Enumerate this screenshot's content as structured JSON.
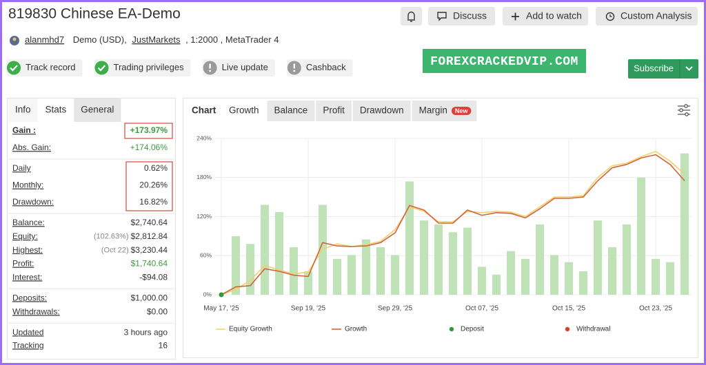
{
  "header": {
    "title": "819830 Chinese EA-Demo",
    "buttons": [
      "Discuss",
      "Add to watch",
      "Custom Analysis"
    ]
  },
  "account": {
    "user": "alanmhd7",
    "type": "Demo (USD),",
    "broker": "JustMarkets",
    "details": ", 1:2000 , MetaTrader 4"
  },
  "badges": [
    {
      "label": "Track record",
      "status": "ok"
    },
    {
      "label": "Trading privileges",
      "status": "ok"
    },
    {
      "label": "Live update",
      "status": "warn"
    },
    {
      "label": "Cashback",
      "status": "warn"
    }
  ],
  "watermark": "FOREXCRACKEDVIP.COM",
  "subscribe": "Subscribe",
  "stats_tabs": {
    "items": [
      "Info",
      "Stats",
      "General"
    ],
    "active": 1
  },
  "stats": [
    {
      "rows": [
        {
          "label": "Gain :",
          "value": "+173.97%",
          "color": "#3c9a3c",
          "bold": true,
          "boxed": true
        },
        {
          "label": "Abs. Gain:",
          "value": "+174.06%",
          "color": "#3c9a3c"
        }
      ]
    },
    {
      "boxed": true,
      "rows": [
        {
          "label": "Daily",
          "value": "0.62%"
        },
        {
          "label": "Monthly:",
          "value": "20.26%"
        },
        {
          "label": "Drawdown:",
          "value": "16.82%"
        }
      ]
    },
    {
      "rows": [
        {
          "label": "Balance:",
          "value": "$2,740.64"
        },
        {
          "label": "Equity:",
          "value": "$2,812.84",
          "note": "(102.63%)"
        },
        {
          "label": "Highest:",
          "value": "$3,230.44",
          "note": "(Oct 22)"
        },
        {
          "label": "Profit:",
          "value": "$1,740.64",
          "color": "#3c9a3c"
        },
        {
          "label": "Interest:",
          "value": "-$94.08"
        }
      ]
    },
    {
      "rows": [
        {
          "label": "Deposits:",
          "value": "$1,000.00"
        },
        {
          "label": "Withdrawals:",
          "value": "$0.00"
        }
      ]
    },
    {
      "rows": [
        {
          "label": "Updated",
          "value": "3 hours ago"
        },
        {
          "label": "Tracking",
          "value": "16"
        }
      ]
    }
  ],
  "chart_tabs": {
    "label": "Chart",
    "items": [
      "Growth",
      "Balance",
      "Profit",
      "Drawdown",
      "Margin"
    ],
    "active": 0,
    "new_badge": "New"
  },
  "chart_data": {
    "type": "line",
    "x": [
      0,
      1,
      2,
      3,
      4,
      5,
      6,
      7,
      8,
      9,
      10,
      11,
      12,
      13,
      14,
      15,
      16,
      17,
      18,
      19,
      20,
      21,
      22,
      23,
      24,
      25,
      26,
      27,
      28,
      29,
      30,
      31,
      32
    ],
    "xlim": [
      -1,
      32.5
    ],
    "xticks": [
      {
        "value": 0,
        "label": "May 17, '25"
      },
      {
        "value": 6,
        "label": "Sep 19, '25"
      },
      {
        "value": 12,
        "label": "Sep 29, '25"
      },
      {
        "value": 18,
        "label": "Oct 07, '25"
      },
      {
        "value": 24,
        "label": "Oct 15, '25"
      },
      {
        "value": 30,
        "label": "Oct 23, '25"
      }
    ],
    "ylim": [
      0,
      240
    ],
    "yticks": [
      {
        "value": 0,
        "label": "0%"
      },
      {
        "value": 60,
        "label": "60%"
      },
      {
        "value": 120,
        "label": "120%"
      },
      {
        "value": 180,
        "label": "180%"
      },
      {
        "value": 240,
        "label": "240%"
      }
    ],
    "grid": true,
    "bars": {
      "color": "#bfe3b6",
      "values": [
        null,
        90,
        78,
        138,
        127,
        73,
        36,
        138,
        55,
        61,
        85,
        73,
        61,
        174,
        114,
        108,
        96,
        103,
        43,
        31,
        67,
        55,
        108,
        61,
        50,
        36,
        114,
        73,
        108,
        180,
        55,
        50,
        217
      ]
    },
    "series": [
      {
        "name": "Equity Growth",
        "color": "#f0d070",
        "values": [
          0,
          8,
          22,
          45,
          38,
          32,
          35,
          70,
          78,
          74,
          77,
          82,
          100,
          135,
          128,
          112,
          112,
          128,
          126,
          128,
          127,
          120,
          135,
          150,
          150,
          152,
          180,
          198,
          202,
          212,
          220,
          205,
          185
        ]
      },
      {
        "name": "Growth",
        "color": "#d2643a",
        "values": [
          0,
          12,
          14,
          40,
          36,
          30,
          28,
          80,
          75,
          74,
          75,
          80,
          95,
          137,
          130,
          110,
          110,
          130,
          122,
          126,
          125,
          118,
          132,
          148,
          148,
          150,
          175,
          195,
          200,
          210,
          215,
          200,
          175
        ]
      }
    ],
    "events": [
      {
        "name": "Deposit",
        "color": "#2e9a3c",
        "x": [
          0
        ],
        "values": [
          0
        ]
      },
      {
        "name": "Withdrawal",
        "color": "#d9412e",
        "x": [],
        "values": []
      }
    ]
  }
}
